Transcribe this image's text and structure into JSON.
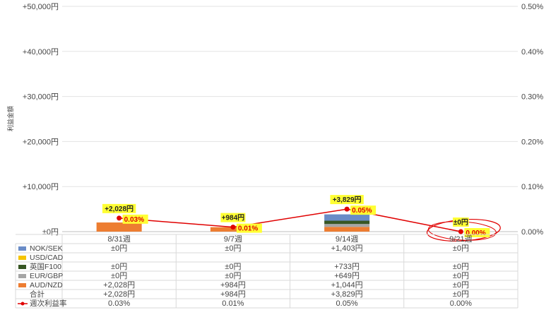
{
  "chart_data": {
    "type": "bar",
    "stacked": true,
    "categories": [
      "8/31週",
      "9/7週",
      "9/14週",
      "9/21週"
    ],
    "ylabel": "利益金額",
    "ylim": [
      0,
      50000
    ],
    "y_ticks": [
      "±0円",
      "+10,000円",
      "+20,000円",
      "+30,000円",
      "+40,000円",
      "+50,000円"
    ],
    "y2lim": [
      0,
      0.5
    ],
    "y2_ticks": [
      "0.00%",
      "0.10%",
      "0.20%",
      "0.30%",
      "0.40%",
      "0.50%"
    ],
    "grid": true,
    "series": [
      {
        "name": "NOK/SEK",
        "color": "#6a8cc7",
        "values": [
          0,
          0,
          1403,
          0
        ],
        "labels": [
          "±0円",
          "±0円",
          "+1,403円",
          "±0円"
        ]
      },
      {
        "name": "USD/CAD",
        "color": "#f5c400",
        "values": [
          0,
          0,
          0,
          0
        ],
        "labels": [
          "",
          "",
          "",
          ""
        ]
      },
      {
        "name": "英国F100",
        "color": "#375623",
        "values": [
          0,
          0,
          733,
          0
        ],
        "labels": [
          "±0円",
          "±0円",
          "+733円",
          "±0円"
        ]
      },
      {
        "name": "EUR/GBP",
        "color": "#a5a5a5",
        "values": [
          0,
          0,
          649,
          0
        ],
        "labels": [
          "±0円",
          "±0円",
          "+649円",
          "±0円"
        ]
      },
      {
        "name": "AUD/NZD",
        "color": "#ed7d31",
        "values": [
          2028,
          984,
          1044,
          0
        ],
        "labels": [
          "+2,028円",
          "+984円",
          "+1,044円",
          "±0円"
        ]
      }
    ],
    "stack_order": [
      "AUD/NZD",
      "EUR/GBP",
      "英国F100",
      "USD/CAD",
      "NOK/SEK"
    ],
    "total": {
      "name": "合計",
      "values": [
        2028,
        984,
        3829,
        0
      ],
      "labels": [
        "+2,028円",
        "+984円",
        "+3,829円",
        "±0円"
      ]
    },
    "rate": {
      "name": "週次利益率",
      "color": "#e00000",
      "values": [
        0.03,
        0.01,
        0.05,
        0.0
      ],
      "labels": [
        "0.03%",
        "0.01%",
        "0.05%",
        "0.00%"
      ]
    },
    "annotation_highlight_color": "#ffff33",
    "circled_point": "9/21週"
  }
}
